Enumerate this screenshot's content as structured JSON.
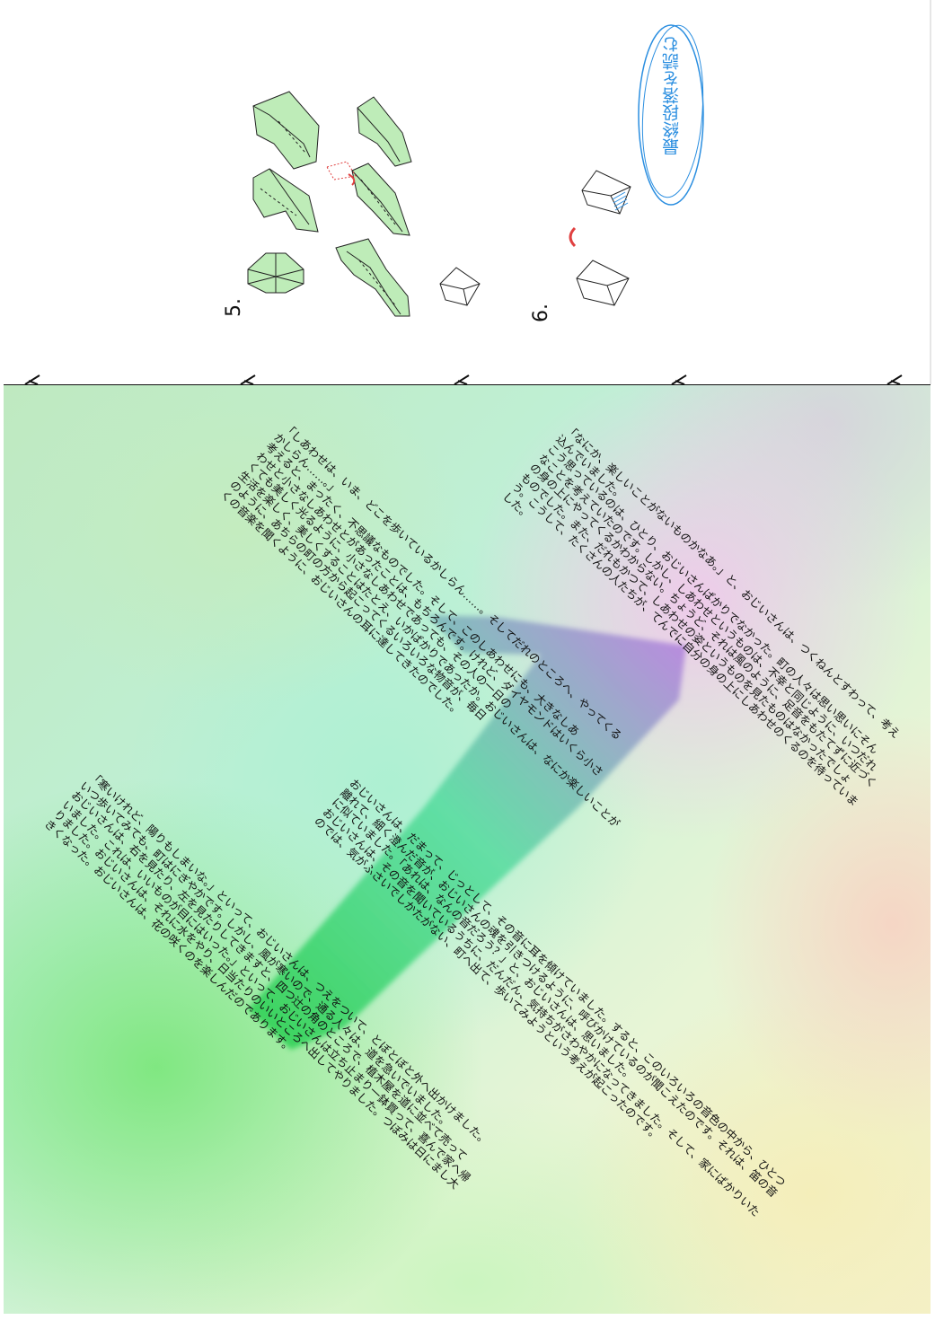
{
  "steps": {
    "step5_label": "5.",
    "step6_label": "6."
  },
  "note": {
    "handwritten": "最終段落を読む",
    "color": "#2a8ee0"
  },
  "colors": {
    "fold_green": "#a8e6a0",
    "arrow_red": "#e04040",
    "ink": "#111111"
  },
  "story": {
    "paragraphs": [
      {
        "lines": [
          "「なにか、楽しいことがないものかなあ。」と、おじいさんは、つくねんとすわって、考え",
          "込んでいました。",
          "こう思っているのは、ひとり、おじいさんばかりでなかった。町の人々は思い思いにそん",
          "なことを考えていたのです。しかし、しあわせというものは、不幸と同じように、いつだれ",
          "の身の上にやってくるかわからない。ちょうど、それは風のように、足音をもたてずに近づく",
          "ものでした。また、だれもかつて、しあわせの姿というものを見たものはなかったでしょ",
          "う。こうして、たくさんの人たちが、てんでに自分の身の上にしあわせのくるのを待っていま",
          "した。"
        ]
      },
      {
        "lines": [
          "「しあわせは、いま、どこを歩いているかしらん……。そしてだれのところへ、やってくる",
          "かしらん……。」",
          "考えると、まったく、不思議なものでした。そして、このしあわせにも、大きなしあ",
          "わせと小さなしあわせとがあったことは、もちろんです。けれど、ダイヤモンドはいくら小さ",
          "くても美しく光るように、小さなしあわせであっても、その人の一日の",
          "生活を楽しく、美しくすることはたとえ、いかばかりであったか。おじいさんは、なにか楽しいことが",
          "のように、あちらの町の方から起こってくるいろいろな物音が、毎日",
          "くの音楽を聞くように、おじいさんの耳に達してきたのでした。"
        ]
      },
      {
        "lines": [
          "おじいさんは、だまって、じっとして、その音に耳を傾けていました。すると、このいろいろの音色の中から、ひとつ",
          "離れて、細く澄んだ音が、おじいさんの魂を引きつけるように、呼びかけているのが聞こえたのです。それは、笛の音",
          "に似ていました。「あれは、なんの音だろう？」と、おじいさんは、思いました。",
          "おじいさんは、その音を聞いているうちに、だんだん、気持ちがさわやかになってきました。そして、家にばかりいた",
          "のでは、気がふさいでしかたがない、町へ出て、歩いてみようという考えが起こったのです。"
        ]
      },
      {
        "lines": [
          "「寒いけれど、陽りもしまいな。」といって、おじいさんは、つえをついて、とぼとぼと外へ出かけました。",
          "いつ歩いてみても、町はにぎやかです。しかし、風が寒いので、通る人々は、道を急いでいました。",
          "おじいさんは、右を見たり、左を見たりしてきますと、四つ辻の角のところで、植木屋を道に並べて売って",
          "いました。これは、いいものが目にはいった。」といって、おじいさんは立ち止まり一鉢買って、喜んで家へ帰",
          "りました。おじいさんは、それに水をやり、日当たりのいいところへ出してやりました。つぼみは日にまし大",
          "きくなった。おじいさんは、花の咲くのを楽しんだのであります。"
        ]
      }
    ]
  }
}
